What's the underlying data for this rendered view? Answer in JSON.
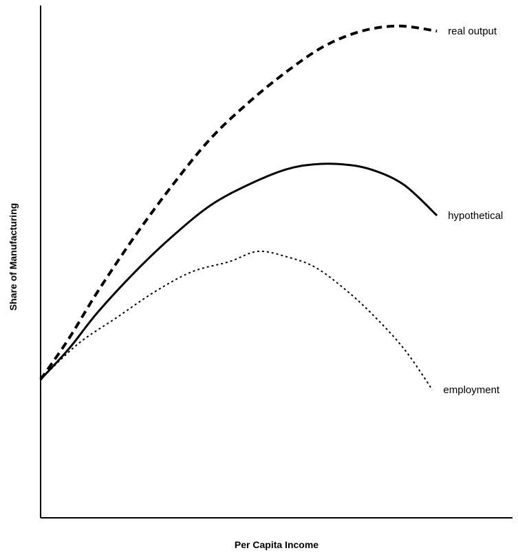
{
  "chart_data": {
    "type": "line",
    "title": "",
    "xlabel": "Per Capita Income",
    "ylabel": "Share of Manufacturing",
    "xlim": [
      0,
      100
    ],
    "ylim": [
      0,
      100
    ],
    "grid": false,
    "legend": "inline labels at line ends",
    "series": [
      {
        "name": "real output",
        "style": "dashed-thick",
        "x": [
          0,
          6,
          12,
          20,
          28,
          36,
          44,
          52,
          60,
          68,
          76,
          84
        ],
        "y": [
          27,
          35,
          44,
          55,
          65,
          74,
          81,
          87,
          92,
          95,
          96,
          95
        ]
      },
      {
        "name": "hypothetical",
        "style": "solid",
        "x": [
          0,
          6,
          12,
          20,
          28,
          36,
          44,
          52,
          58,
          64,
          70,
          77,
          84
        ],
        "y": [
          27,
          33,
          40,
          48,
          55,
          61,
          65,
          68,
          69,
          69,
          68,
          65,
          59
        ]
      },
      {
        "name": "employment",
        "style": "dotted",
        "x": [
          0,
          8,
          16,
          24,
          32,
          40,
          46,
          52,
          58,
          64,
          70,
          77,
          83
        ],
        "y": [
          27,
          34,
          39,
          44,
          48,
          50,
          52,
          51,
          49,
          45,
          40,
          33,
          25
        ]
      }
    ]
  }
}
